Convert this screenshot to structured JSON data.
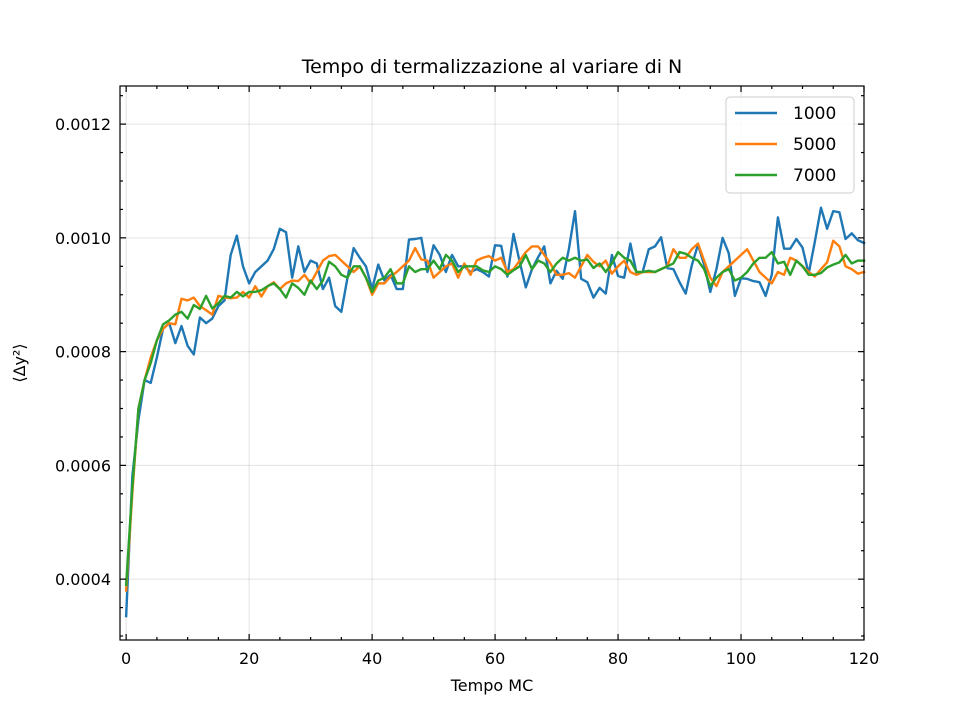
{
  "chart_data": {
    "type": "line",
    "title": "Tempo di termalizzazione al variare di N",
    "xlabel": "Tempo MC",
    "ylabel": "⟨Δy²⟩",
    "xlim": [
      -1,
      120
    ],
    "ylim": [
      0.000293,
      0.001267
    ],
    "xticks": [
      0,
      20,
      40,
      60,
      80,
      100,
      120
    ],
    "xtick_labels": [
      "0",
      "20",
      "40",
      "60",
      "80",
      "100",
      "120"
    ],
    "yticks": [
      0.0004,
      0.0006,
      0.0008,
      0.001,
      0.0012
    ],
    "ytick_labels": [
      "0.0004",
      "0.0006",
      "0.0008",
      "0.0010",
      "0.0012"
    ],
    "grid": true,
    "legend_position": "top-right",
    "series": [
      {
        "name": "1000",
        "color": "#1f77b4",
        "values": [
          0.000335,
          0.00058,
          0.00068,
          0.00075,
          0.000745,
          0.00079,
          0.00084,
          0.00085,
          0.000815,
          0.000845,
          0.00081,
          0.000795,
          0.00086,
          0.00085,
          0.000858,
          0.00088,
          0.00089,
          0.00097,
          0.001004,
          0.00095,
          0.00092,
          0.00094,
          0.00095,
          0.00096,
          0.00098,
          0.001016,
          0.00101,
          0.00093,
          0.000985,
          0.00094,
          0.00096,
          0.000955,
          0.00091,
          0.00093,
          0.00088,
          0.00087,
          0.00093,
          0.000982,
          0.000965,
          0.00095,
          0.00091,
          0.000953,
          0.000925,
          0.000935,
          0.00091,
          0.00091,
          0.000997,
          0.000998,
          0.001,
          0.00094,
          0.000987,
          0.00097,
          0.00094,
          0.00097,
          0.00095,
          0.00095,
          0.00094,
          0.000945,
          0.00094,
          0.000932,
          0.000987,
          0.000986,
          0.000932,
          0.001007,
          0.000958,
          0.000913,
          0.000945,
          0.000966,
          0.000985,
          0.00092,
          0.000942,
          0.000928,
          0.00098,
          0.001047,
          0.000928,
          0.000922,
          0.000895,
          0.000912,
          0.000902,
          0.00097,
          0.000933,
          0.00093,
          0.00099,
          0.000938,
          0.00094,
          0.00098,
          0.000985,
          0.001001,
          0.000947,
          0.000945,
          0.000922,
          0.000902,
          0.000952,
          0.000988,
          0.000953,
          0.000905,
          0.000945,
          0.001,
          0.000973,
          0.000898,
          0.000929,
          0.000928,
          0.000924,
          0.000922,
          0.000898,
          0.000935,
          0.001036,
          0.000981,
          0.000981,
          0.000998,
          0.000983,
          0.000937,
          0.000993,
          0.001053,
          0.001016,
          0.001047,
          0.001045,
          0.000998,
          0.001008,
          0.000996,
          0.000991
        ]
      },
      {
        "name": "5000",
        "color": "#ff7f0e",
        "values": [
          0.00038,
          0.00055,
          0.0007,
          0.00075,
          0.00079,
          0.00082,
          0.00084,
          0.00085,
          0.000848,
          0.000893,
          0.00089,
          0.000895,
          0.00088,
          0.000873,
          0.000865,
          0.000898,
          0.000895,
          0.000894,
          0.000895,
          0.000905,
          0.000895,
          0.000915,
          0.000897,
          0.000915,
          0.000922,
          0.00091,
          0.00092,
          0.000925,
          0.000924,
          0.000935,
          0.00092,
          0.00094,
          0.00096,
          0.000968,
          0.00097,
          0.00096,
          0.00095,
          0.00094,
          0.00095,
          0.00093,
          0.0009,
          0.00092,
          0.00092,
          0.000932,
          0.00094,
          0.00095,
          0.00096,
          0.000982,
          0.000962,
          0.00096,
          0.00093,
          0.00094,
          0.00095,
          0.000955,
          0.00093,
          0.000955,
          0.000935,
          0.00096,
          0.000965,
          0.000968,
          0.00096,
          0.000965,
          0.00094,
          0.000945,
          0.00096,
          0.000975,
          0.000985,
          0.000985,
          0.00097,
          0.000955,
          0.000935,
          0.000935,
          0.000938,
          0.00093,
          0.00095,
          0.00097,
          0.000958,
          0.00095,
          0.00096,
          0.000937,
          0.00095,
          0.00096,
          0.00094,
          0.000935,
          0.00094,
          0.00094,
          0.00094,
          0.000945,
          0.00095,
          0.00098,
          0.000965,
          0.000965,
          0.00098,
          0.00099,
          0.00096,
          0.00093,
          0.000915,
          0.00094,
          0.00095,
          0.00096,
          0.00097,
          0.00098,
          0.00096,
          0.00094,
          0.00093,
          0.00092,
          0.00094,
          0.000935,
          0.000965,
          0.00096,
          0.00095,
          0.00094,
          0.000932,
          0.000945,
          0.000957,
          0.000995,
          0.000985,
          0.00095,
          0.000945,
          0.000937,
          0.00094
        ]
      },
      {
        "name": "7000",
        "color": "#2ca02c",
        "values": [
          0.00039,
          0.00056,
          0.0007,
          0.00075,
          0.00078,
          0.00082,
          0.000848,
          0.000855,
          0.000865,
          0.00087,
          0.000858,
          0.000882,
          0.000875,
          0.000898,
          0.000876,
          0.000885,
          0.000898,
          0.000895,
          0.000905,
          0.000897,
          0.000905,
          0.000905,
          0.000908,
          0.000915,
          0.00092,
          0.00091,
          0.000895,
          0.00092,
          0.000912,
          0.0009,
          0.000925,
          0.00091,
          0.000925,
          0.000958,
          0.00095,
          0.000935,
          0.00093,
          0.00095,
          0.00095,
          0.00093,
          0.000905,
          0.000925,
          0.00093,
          0.000945,
          0.00092,
          0.00092,
          0.00095,
          0.00094,
          0.000945,
          0.000945,
          0.00096,
          0.000945,
          0.00097,
          0.00096,
          0.00094,
          0.00095,
          0.00095,
          0.00095,
          0.000943,
          0.00094,
          0.00095,
          0.000945,
          0.000935,
          0.000943,
          0.00095,
          0.00097,
          0.000945,
          0.00096,
          0.000955,
          0.00094,
          0.000955,
          0.000965,
          0.00096,
          0.000965,
          0.00096,
          0.000962,
          0.000947,
          0.000955,
          0.00094,
          0.000955,
          0.000975,
          0.000965,
          0.00096,
          0.00094,
          0.00094,
          0.000942,
          0.00094,
          0.000945,
          0.00095,
          0.000955,
          0.000975,
          0.000972,
          0.000965,
          0.00096,
          0.000945,
          0.000915,
          0.00093,
          0.00094,
          0.000945,
          0.000925,
          0.00093,
          0.00094,
          0.000955,
          0.000965,
          0.000965,
          0.000975,
          0.000955,
          0.000958,
          0.000935,
          0.00096,
          0.00095,
          0.000935,
          0.000935,
          0.000938,
          0.000948,
          0.000953,
          0.000957,
          0.00097,
          0.000955,
          0.00096,
          0.00096
        ]
      }
    ]
  }
}
